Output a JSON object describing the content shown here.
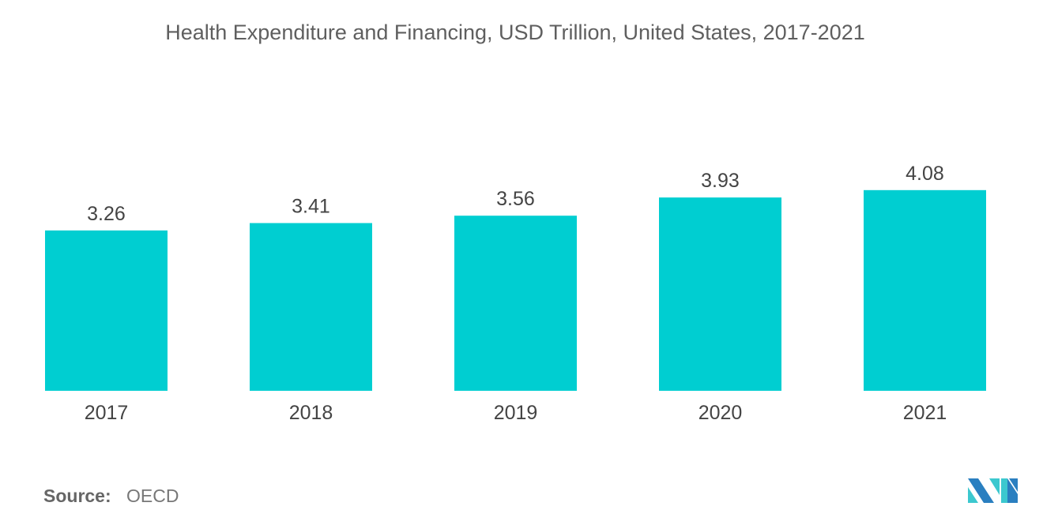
{
  "chart_data": {
    "type": "bar",
    "title": "Health Expenditure and Financing, USD Trillion, United States, 2017-2021",
    "categories": [
      "2017",
      "2018",
      "2019",
      "2020",
      "2021"
    ],
    "values": [
      3.26,
      3.41,
      3.56,
      3.93,
      4.08
    ],
    "data_labels": [
      "3.26",
      "3.41",
      "3.56",
      "3.93",
      "4.08"
    ],
    "xlabel": "",
    "ylabel": "",
    "ylim": [
      0,
      4.08
    ],
    "grid": false,
    "legend": "none",
    "bar_color": "#00ced1"
  },
  "source": {
    "label": "Source:",
    "value": "OECD"
  },
  "logo": {
    "name": "mordor-intelligence-logo",
    "colors": [
      "#2a7fc0",
      "#3cc8cf"
    ]
  }
}
